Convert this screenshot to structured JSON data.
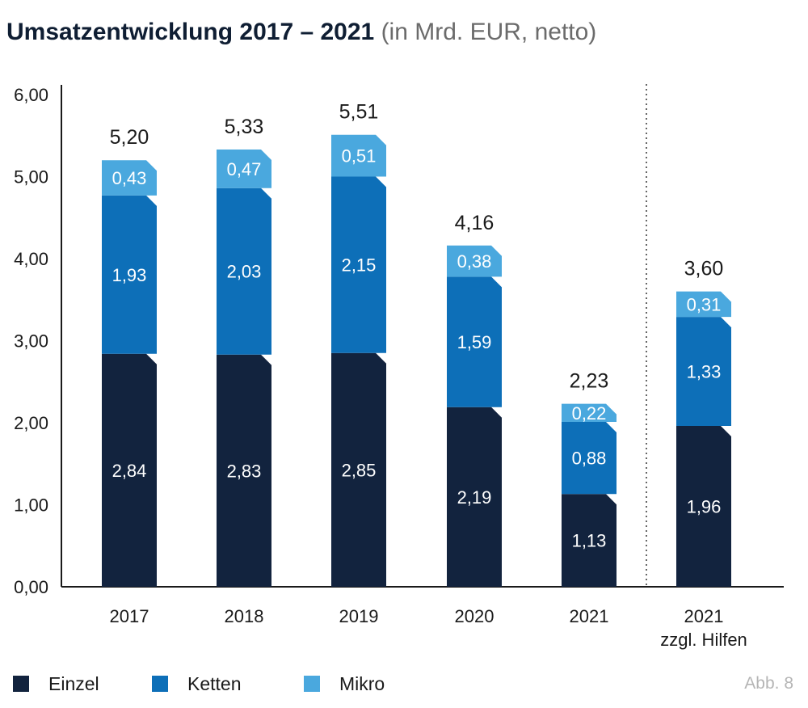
{
  "title": {
    "main": "Umsatzentwicklung 2017 – 2021",
    "sub": "(in Mrd. EUR, netto)"
  },
  "figure_ref": "Abb. 8",
  "colors": {
    "Einzel": "#12233e",
    "Ketten": "#0d6fb8",
    "Mikro": "#4aa8de",
    "axis": "#1a1a1a",
    "text": "#1a1a1a"
  },
  "legend": [
    {
      "name": "Einzel",
      "color": "#12233e"
    },
    {
      "name": "Ketten",
      "color": "#0d6fb8"
    },
    {
      "name": "Mikro",
      "color": "#4aa8de"
    }
  ],
  "chart_data": {
    "type": "bar",
    "stacked": true,
    "title": "Umsatzentwicklung 2017 – 2021 (in Mrd. EUR, netto)",
    "categories": [
      "2017",
      "2018",
      "2019",
      "2020",
      "2021",
      "2021 zzgl. Hilfen"
    ],
    "category_lines": [
      [
        "2017"
      ],
      [
        "2018"
      ],
      [
        "2019"
      ],
      [
        "2020"
      ],
      [
        "2021"
      ],
      [
        "2021",
        "zzgl. Hilfen"
      ]
    ],
    "value_labels": {
      "Einzel": [
        "2,84",
        "2,83",
        "2,85",
        "2,19",
        "1,13",
        "1,96"
      ],
      "Ketten": [
        "1,93",
        "2,03",
        "2,15",
        "1,59",
        "0,88",
        "1,33"
      ],
      "Mikro": [
        "0,43",
        "0,47",
        "0,51",
        "0,38",
        "0,22",
        "0,31"
      ]
    },
    "series": [
      {
        "name": "Einzel",
        "values": [
          2.84,
          2.83,
          2.85,
          2.19,
          1.13,
          1.96
        ]
      },
      {
        "name": "Ketten",
        "values": [
          1.93,
          2.03,
          2.15,
          1.59,
          0.88,
          1.33
        ]
      },
      {
        "name": "Mikro",
        "values": [
          0.43,
          0.47,
          0.51,
          0.38,
          0.22,
          0.31
        ]
      }
    ],
    "totals": [
      5.2,
      5.33,
      5.51,
      4.16,
      2.23,
      3.6
    ],
    "total_labels": [
      "5,20",
      "5,33",
      "5,51",
      "4,16",
      "2,23",
      "3,60"
    ],
    "yticks": [
      "0,00",
      "1,00",
      "2,00",
      "3,00",
      "4,00",
      "5,00",
      "6,00"
    ],
    "ylim": [
      0,
      6
    ],
    "separator_before_category": 5,
    "legend_position": "bottom-left",
    "grid": false
  }
}
